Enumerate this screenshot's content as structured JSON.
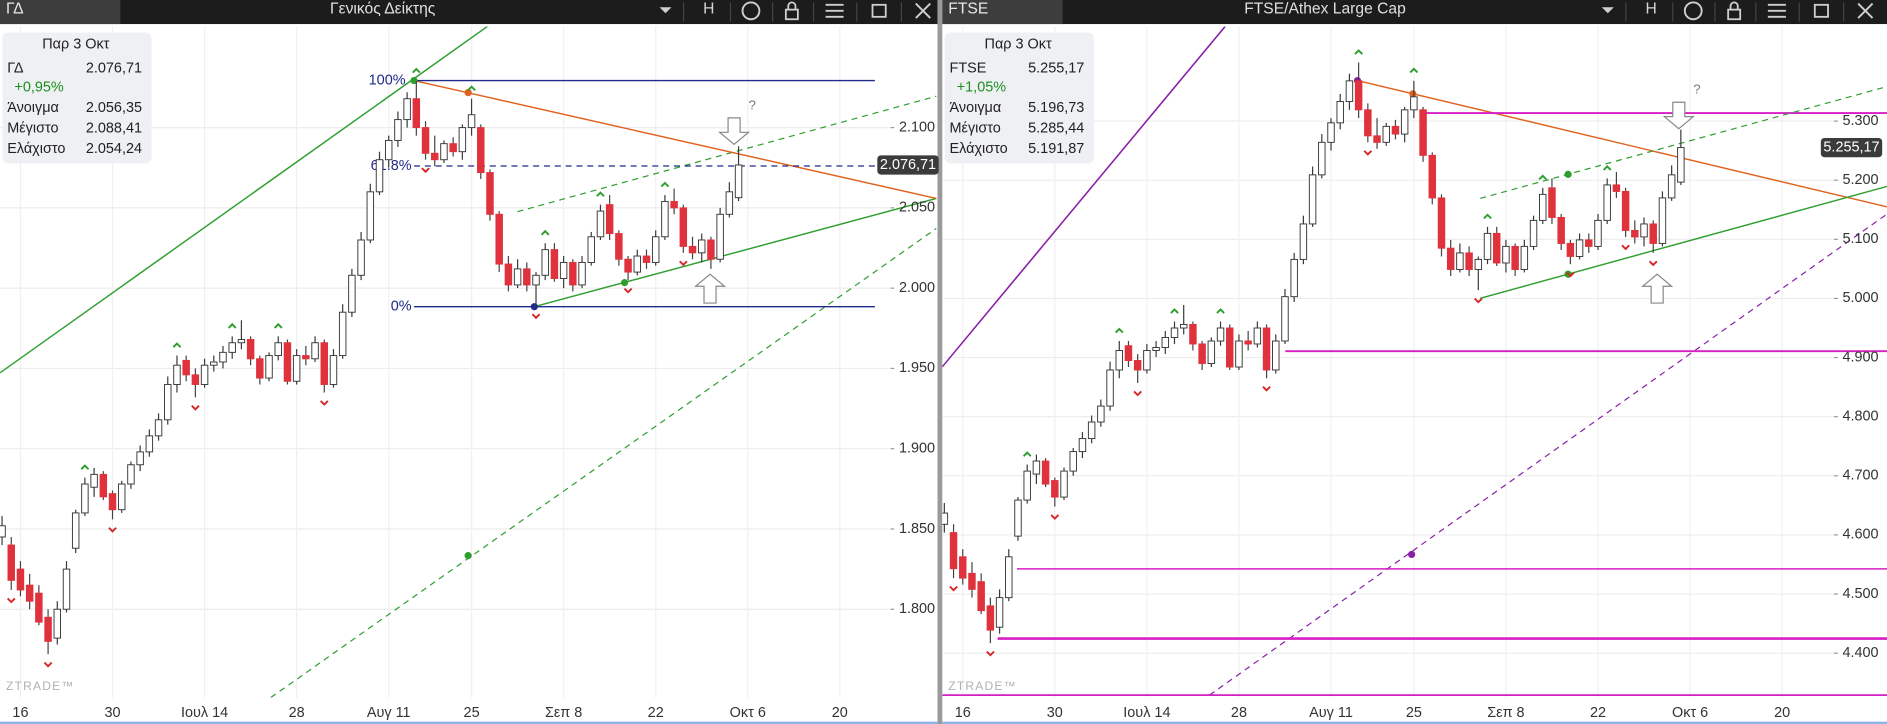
{
  "windows": [
    {
      "symbol": "ΓΔ",
      "title": "Γενικός Δείκτης",
      "button": "H"
    },
    {
      "symbol": "FTSE",
      "title": "FTSE/Athex Large Cap",
      "button": "H"
    }
  ],
  "watermark": "ZTRADE™",
  "chart_data": [
    {
      "type": "candlestick",
      "info": {
        "date": "Παρ 3 Οκτ",
        "name": "ΓΔ",
        "last": "2.076,71",
        "change": "+0,95%",
        "rows": [
          {
            "label": "Άνοιγμα",
            "value": "2.056,35"
          },
          {
            "label": "Μέγιστο",
            "value": "2.088,41"
          },
          {
            "label": "Ελάχιστο",
            "value": "2.054,24"
          }
        ]
      },
      "last_price_label": "2.076,71",
      "fib_labels": [
        "100%",
        "61.8%",
        "0%"
      ],
      "question": "?",
      "colors": {
        "up": "#ffffff",
        "down": "#e0323c"
      },
      "grid": true,
      "ylim": [
        1745,
        2163
      ],
      "yticks": [
        {
          "value": 1800,
          "label": "1.800"
        },
        {
          "value": 1850,
          "label": "1.850"
        },
        {
          "value": 1900,
          "label": "1.900"
        },
        {
          "value": 1950,
          "label": "1.950"
        },
        {
          "value": 2000,
          "label": "2.000"
        },
        {
          "value": 2050,
          "label": "2.050"
        },
        {
          "value": 2100,
          "label": "2.100"
        }
      ],
      "categories": [
        null,
        null,
        "16",
        null,
        null,
        null,
        null,
        null,
        null,
        null,
        null,
        null,
        "30",
        null,
        null,
        null,
        null,
        null,
        null,
        null,
        null,
        null,
        "Ιουλ 14",
        null,
        null,
        null,
        null,
        null,
        null,
        null,
        null,
        null,
        "28",
        null,
        null,
        null,
        null,
        null,
        null,
        null,
        null,
        null,
        "Αυγ 11",
        null,
        null,
        null,
        null,
        null,
        null,
        null,
        null,
        "25",
        null,
        null,
        null,
        null,
        null,
        null,
        null,
        null,
        null,
        "Σεπ 8",
        null,
        null,
        null,
        null,
        null,
        null,
        null,
        null,
        null,
        "22",
        null,
        null,
        null,
        null,
        null,
        null,
        null,
        null,
        null,
        "Οκτ 6",
        null,
        null,
        null,
        null,
        null,
        null,
        null,
        null,
        null,
        "20",
        null,
        null,
        null,
        null,
        null
      ],
      "candles": [
        [
          1845,
          1858,
          1840,
          1852
        ],
        [
          1840,
          1845,
          1812,
          1818
        ],
        [
          1825,
          1830,
          1808,
          1812
        ],
        [
          1815,
          1822,
          1800,
          1805
        ],
        [
          1810,
          1815,
          1790,
          1792
        ],
        [
          1795,
          1800,
          1772,
          1780
        ],
        [
          1782,
          1805,
          1778,
          1800
        ],
        [
          1800,
          1830,
          1798,
          1825
        ],
        [
          1838,
          1862,
          1835,
          1860
        ],
        [
          1860,
          1882,
          1858,
          1878
        ],
        [
          1876,
          1888,
          1870,
          1884
        ],
        [
          1884,
          1886,
          1868,
          1870
        ],
        [
          1872,
          1874,
          1856,
          1862
        ],
        [
          1862,
          1880,
          1860,
          1878
        ],
        [
          1878,
          1892,
          1875,
          1890
        ],
        [
          1890,
          1902,
          1886,
          1898
        ],
        [
          1898,
          1912,
          1895,
          1908
        ],
        [
          1908,
          1922,
          1905,
          1918
        ],
        [
          1918,
          1945,
          1915,
          1940
        ],
        [
          1940,
          1958,
          1935,
          1952
        ],
        [
          1955,
          1958,
          1942,
          1946
        ],
        [
          1946,
          1950,
          1932,
          1940
        ],
        [
          1940,
          1956,
          1938,
          1952
        ],
        [
          1952,
          1958,
          1948,
          1954
        ],
        [
          1954,
          1964,
          1950,
          1960
        ],
        [
          1960,
          1970,
          1956,
          1966
        ],
        [
          1966,
          1980,
          1962,
          1968
        ],
        [
          1968,
          1970,
          1952,
          1956
        ],
        [
          1956,
          1958,
          1940,
          1944
        ],
        [
          1944,
          1960,
          1942,
          1958
        ],
        [
          1958,
          1970,
          1955,
          1966
        ],
        [
          1966,
          1968,
          1940,
          1942
        ],
        [
          1942,
          1962,
          1940,
          1958
        ],
        [
          1958,
          1964,
          1952,
          1956
        ],
        [
          1956,
          1970,
          1954,
          1966
        ],
        [
          1966,
          1968,
          1935,
          1940
        ],
        [
          1940,
          1962,
          1938,
          1958
        ],
        [
          1958,
          1990,
          1956,
          1985
        ],
        [
          1985,
          2012,
          1982,
          2008
        ],
        [
          2008,
          2035,
          2005,
          2030
        ],
        [
          2030,
          2065,
          2028,
          2060
        ],
        [
          2060,
          2085,
          2058,
          2080
        ],
        [
          2080,
          2095,
          2075,
          2092
        ],
        [
          2092,
          2110,
          2088,
          2105
        ],
        [
          2105,
          2122,
          2100,
          2118
        ],
        [
          2118,
          2129,
          2095,
          2100
        ],
        [
          2100,
          2104,
          2080,
          2084
        ],
        [
          2084,
          2095,
          2076,
          2080
        ],
        [
          2080,
          2092,
          2078,
          2090
        ],
        [
          2090,
          2094,
          2082,
          2085
        ],
        [
          2085,
          2102,
          2080,
          2100
        ],
        [
          2100,
          2118,
          2095,
          2108
        ],
        [
          2100,
          2102,
          2068,
          2072
        ],
        [
          2072,
          2074,
          2042,
          2046
        ],
        [
          2046,
          2048,
          2010,
          2015
        ],
        [
          2015,
          2020,
          1998,
          2002
        ],
        [
          2002,
          2018,
          2000,
          2012
        ],
        [
          2012,
          2016,
          1998,
          2002
        ],
        [
          2002,
          2010,
          1989,
          2008
        ],
        [
          2008,
          2028,
          2005,
          2024
        ],
        [
          2024,
          2028,
          2004,
          2006
        ],
        [
          2006,
          2020,
          2000,
          2016
        ],
        [
          2016,
          2018,
          1998,
          2002
        ],
        [
          2002,
          2020,
          2000,
          2016
        ],
        [
          2016,
          2035,
          2014,
          2032
        ],
        [
          2032,
          2052,
          2030,
          2048
        ],
        [
          2052,
          2058,
          2030,
          2034
        ],
        [
          2034,
          2036,
          2014,
          2018
        ],
        [
          2018,
          2020,
          2005,
          2010
        ],
        [
          2010,
          2024,
          2008,
          2020
        ],
        [
          2020,
          2024,
          2012,
          2016
        ],
        [
          2016,
          2036,
          2014,
          2032
        ],
        [
          2032,
          2058,
          2030,
          2054
        ],
        [
          2054,
          2062,
          2046,
          2050
        ],
        [
          2050,
          2052,
          2022,
          2026
        ],
        [
          2026,
          2032,
          2018,
          2022
        ],
        [
          2022,
          2034,
          2016,
          2030
        ],
        [
          2030,
          2032,
          2012,
          2018
        ],
        [
          2018,
          2050,
          2016,
          2046
        ],
        [
          2046,
          2066,
          2044,
          2060
        ],
        [
          2056.35,
          2088.41,
          2054.24,
          2076.71
        ],
        null,
        null,
        null,
        null,
        null,
        null,
        null,
        null,
        null,
        null,
        null,
        null,
        null,
        null,
        null,
        null
      ]
    },
    {
      "type": "candlestick",
      "info": {
        "date": "Παρ 3 Οκτ",
        "name": "FTSE",
        "last": "5.255,17",
        "change": "+1,05%",
        "rows": [
          {
            "label": "Άνοιγμα",
            "value": "5.196,73"
          },
          {
            "label": "Μέγιστο",
            "value": "5.285,44"
          },
          {
            "label": "Ελάχιστο",
            "value": "5.191,87"
          }
        ]
      },
      "last_price_label": "5.255,17",
      "question": "?",
      "colors": {
        "up": "#ffffff",
        "down": "#e0323c"
      },
      "grid": true,
      "ylim": [
        4325,
        5460
      ],
      "yticks": [
        {
          "value": 4400,
          "label": "4.400"
        },
        {
          "value": 4500,
          "label": "4.500"
        },
        {
          "value": 4600,
          "label": "4.600"
        },
        {
          "value": 4700,
          "label": "4.700"
        },
        {
          "value": 4800,
          "label": "4.800"
        },
        {
          "value": 4900,
          "label": "4.900"
        },
        {
          "value": 5000,
          "label": "5.000"
        },
        {
          "value": 5100,
          "label": "5.100"
        },
        {
          "value": 5200,
          "label": "5.200"
        },
        {
          "value": 5300,
          "label": "5.300"
        }
      ],
      "categories": [
        null,
        null,
        "16",
        null,
        null,
        null,
        null,
        null,
        null,
        null,
        null,
        null,
        "30",
        null,
        null,
        null,
        null,
        null,
        null,
        null,
        null,
        null,
        "Ιουλ 14",
        null,
        null,
        null,
        null,
        null,
        null,
        null,
        null,
        null,
        "28",
        null,
        null,
        null,
        null,
        null,
        null,
        null,
        null,
        null,
        "Αυγ 11",
        null,
        null,
        null,
        null,
        null,
        null,
        null,
        null,
        "25",
        null,
        null,
        null,
        null,
        null,
        null,
        null,
        null,
        null,
        "Σεπ 8",
        null,
        null,
        null,
        null,
        null,
        null,
        null,
        null,
        null,
        "22",
        null,
        null,
        null,
        null,
        null,
        null,
        null,
        null,
        null,
        "Οκτ 6",
        null,
        null,
        null,
        null,
        null,
        null,
        null,
        null,
        null,
        "20",
        null,
        null,
        null,
        null,
        null
      ],
      "candles": [
        [
          4618,
          4654,
          4604,
          4637
        ],
        [
          4604,
          4618,
          4527,
          4543
        ],
        [
          4563,
          4576,
          4516,
          4527
        ],
        [
          4535,
          4554,
          4494,
          4508
        ],
        [
          4521,
          4535,
          4466,
          4472
        ],
        [
          4480,
          4494,
          4417,
          4439
        ],
        [
          4444,
          4508,
          4433,
          4494
        ],
        [
          4494,
          4576,
          4488,
          4563
        ],
        [
          4598,
          4664,
          4590,
          4659
        ],
        [
          4659,
          4719,
          4653,
          4708
        ],
        [
          4703,
          4736,
          4686,
          4725
        ],
        [
          4725,
          4730,
          4681,
          4686
        ],
        [
          4692,
          4697,
          4648,
          4664
        ],
        [
          4664,
          4714,
          4659,
          4708
        ],
        [
          4708,
          4747,
          4700,
          4741
        ],
        [
          4741,
          4774,
          4730,
          4763
        ],
        [
          4763,
          4802,
          4755,
          4791
        ],
        [
          4791,
          4829,
          4783,
          4818
        ],
        [
          4818,
          4893,
          4810,
          4879
        ],
        [
          4879,
          4928,
          4865,
          4912
        ],
        [
          4920,
          4928,
          4884,
          4895
        ],
        [
          4895,
          4906,
          4857,
          4879
        ],
        [
          4879,
          4923,
          4873,
          4912
        ],
        [
          4912,
          4928,
          4901,
          4917
        ],
        [
          4917,
          4945,
          4906,
          4934
        ],
        [
          4934,
          4961,
          4923,
          4950
        ],
        [
          4950,
          4989,
          4939,
          4956
        ],
        [
          4956,
          4961,
          4912,
          4923
        ],
        [
          4923,
          4928,
          4879,
          4890
        ],
        [
          4890,
          4934,
          4884,
          4928
        ],
        [
          4928,
          4961,
          4920,
          4950
        ],
        [
          4950,
          4956,
          4879,
          4884
        ],
        [
          4884,
          4939,
          4879,
          4928
        ],
        [
          4928,
          4945,
          4912,
          4923
        ],
        [
          4923,
          4961,
          4917,
          4950
        ],
        [
          4950,
          4956,
          4865,
          4879
        ],
        [
          4879,
          4939,
          4873,
          4928
        ],
        [
          4928,
          5016,
          4923,
          5003
        ],
        [
          5003,
          5077,
          4994,
          5066
        ],
        [
          5066,
          5140,
          5058,
          5126
        ],
        [
          5126,
          5223,
          5121,
          5209
        ],
        [
          5209,
          5278,
          5203,
          5264
        ],
        [
          5264,
          5305,
          5250,
          5297
        ],
        [
          5297,
          5346,
          5286,
          5333
        ],
        [
          5333,
          5380,
          5319,
          5368
        ],
        [
          5368,
          5399,
          5305,
          5319
        ],
        [
          5319,
          5330,
          5264,
          5275
        ],
        [
          5275,
          5305,
          5253,
          5264
        ],
        [
          5264,
          5297,
          5258,
          5291
        ],
        [
          5291,
          5302,
          5269,
          5278
        ],
        [
          5278,
          5324,
          5264,
          5319
        ],
        [
          5319,
          5368,
          5305,
          5341
        ],
        [
          5319,
          5324,
          5231,
          5242
        ],
        [
          5242,
          5247,
          5159,
          5170
        ],
        [
          5170,
          5176,
          5071,
          5085
        ],
        [
          5085,
          5099,
          5038,
          5049
        ],
        [
          5049,
          5093,
          5044,
          5077
        ],
        [
          5077,
          5088,
          5038,
          5049
        ],
        [
          5049,
          5071,
          5014,
          5066
        ],
        [
          5066,
          5121,
          5058,
          5110
        ],
        [
          5110,
          5121,
          5055,
          5060
        ],
        [
          5060,
          5099,
          5044,
          5088
        ],
        [
          5088,
          5093,
          5038,
          5049
        ],
        [
          5049,
          5099,
          5044,
          5088
        ],
        [
          5088,
          5140,
          5082,
          5132
        ],
        [
          5132,
          5187,
          5126,
          5176
        ],
        [
          5187,
          5203,
          5126,
          5137
        ],
        [
          5137,
          5143,
          5082,
          5093
        ],
        [
          5093,
          5099,
          5058,
          5071
        ],
        [
          5071,
          5110,
          5066,
          5099
        ],
        [
          5099,
          5110,
          5077,
          5088
        ],
        [
          5088,
          5143,
          5082,
          5132
        ],
        [
          5132,
          5203,
          5126,
          5192
        ],
        [
          5192,
          5214,
          5170,
          5181
        ],
        [
          5181,
          5187,
          5104,
          5115
        ],
        [
          5115,
          5132,
          5093,
          5104
        ],
        [
          5104,
          5137,
          5088,
          5126
        ],
        [
          5126,
          5132,
          5077,
          5093
        ],
        [
          5093,
          5181,
          5088,
          5170
        ],
        [
          5170,
          5225,
          5165,
          5209
        ],
        [
          5196.73,
          5285.44,
          5191.87,
          5255.17
        ],
        null,
        null,
        null,
        null,
        null,
        null,
        null,
        null,
        null,
        null,
        null,
        null,
        null,
        null,
        null,
        null
      ]
    }
  ]
}
